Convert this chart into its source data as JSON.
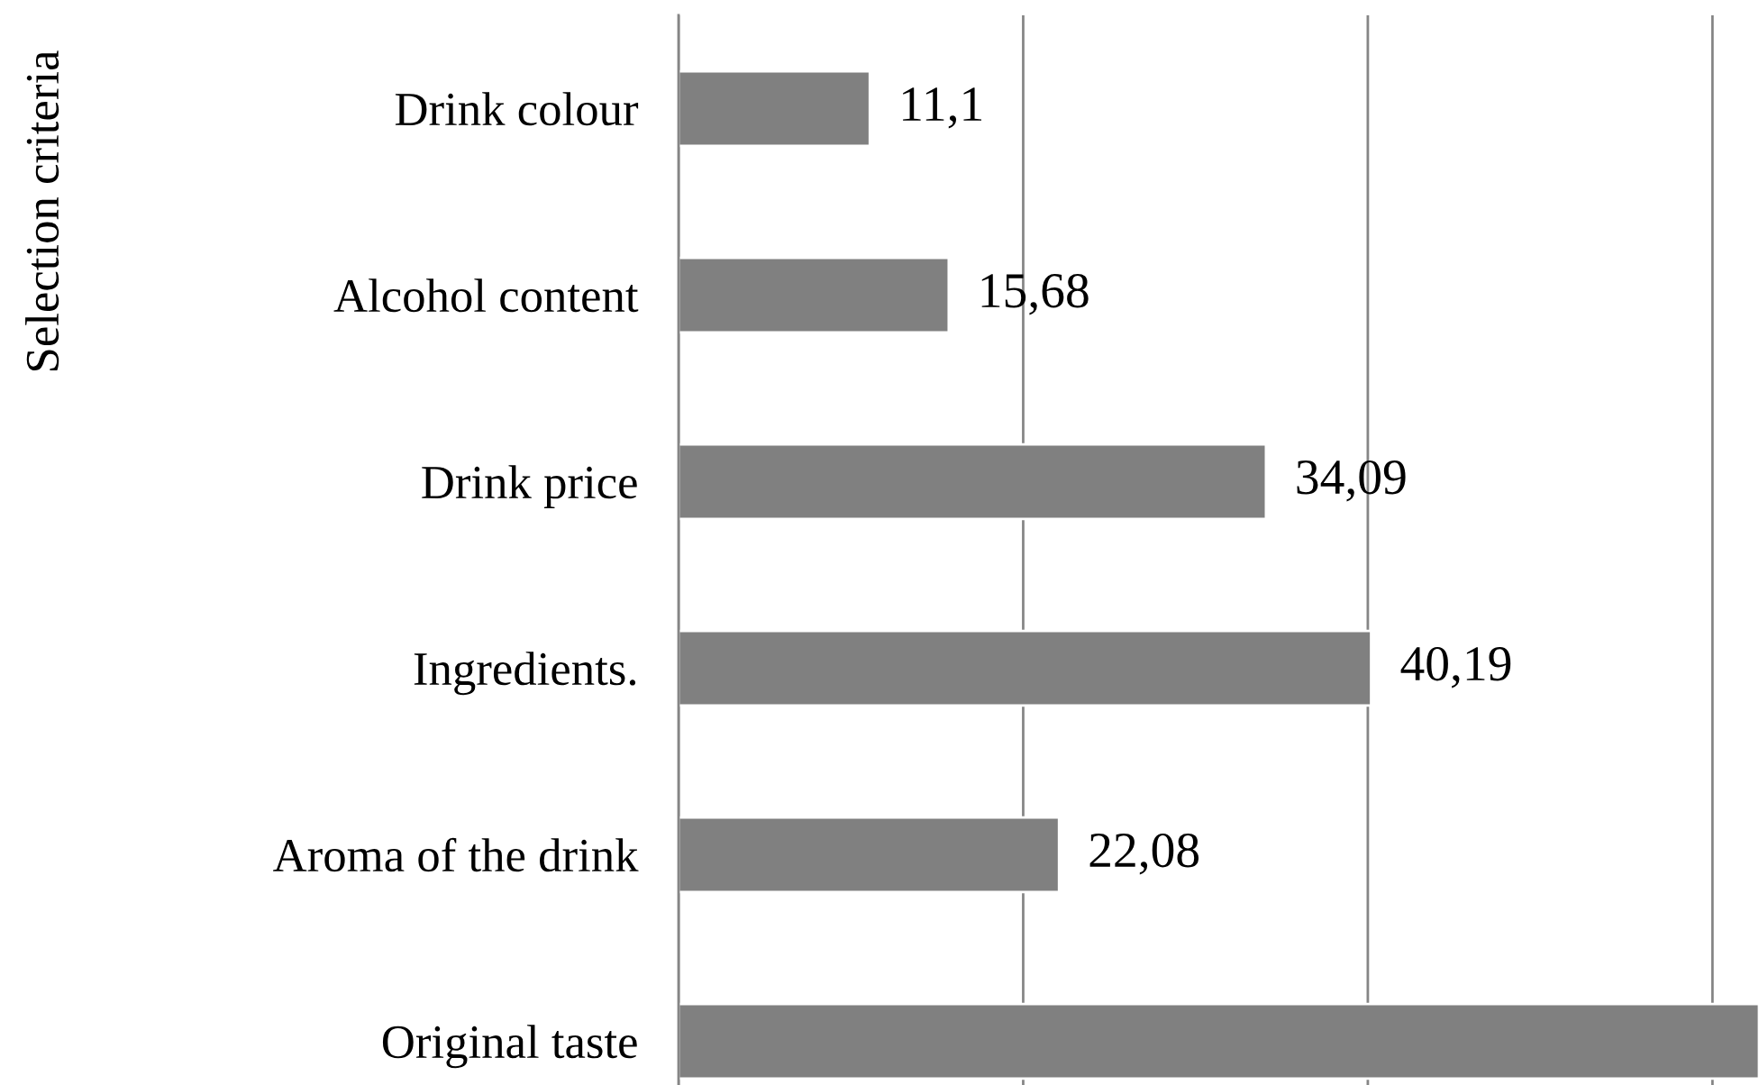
{
  "chart_data": {
    "type": "bar",
    "orientation": "horizontal",
    "ylabel": "Selection criteria",
    "categories": [
      "Drink colour",
      "Alcohol content",
      "Drink price",
      "Ingredients.",
      "Aroma of the drink",
      "Original taste"
    ],
    "values": [
      11.1,
      15.68,
      34.09,
      40.19,
      22.08,
      62.7
    ],
    "value_labels": [
      "11,1",
      "15,68",
      "34,09",
      "40,19",
      "22,08",
      null
    ],
    "color": "#808080",
    "xlim": [
      0,
      62.7
    ],
    "xticks": [
      0,
      20,
      40,
      60
    ],
    "grid": "x",
    "tick_labels": "y"
  }
}
